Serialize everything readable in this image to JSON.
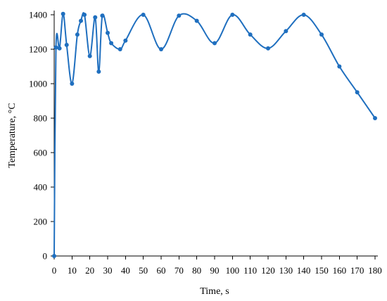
{
  "chart_data": {
    "type": "line",
    "xlabel": "Time, s",
    "ylabel": "Temperature, °C",
    "xlim": [
      0,
      180
    ],
    "ylim": [
      0,
      1400
    ],
    "xticks": [
      0,
      10,
      20,
      30,
      40,
      50,
      60,
      70,
      80,
      90,
      100,
      110,
      120,
      130,
      140,
      150,
      160,
      170,
      180
    ],
    "yticks": [
      0,
      200,
      400,
      600,
      800,
      1000,
      1200,
      1400
    ],
    "grid": false,
    "legend": "none",
    "colors": {
      "series": "#1f6fbf",
      "axis": "#000000"
    },
    "series": [
      {
        "x": [
          0,
          1,
          3,
          5,
          7,
          10,
          13,
          15,
          17,
          20,
          23,
          25,
          27,
          30,
          32,
          37,
          40,
          50,
          60,
          70,
          80,
          90,
          100,
          110,
          120,
          130,
          140,
          150,
          160,
          170,
          180
        ],
        "values": [
          0,
          1210,
          1205,
          1405,
          1225,
          1000,
          1285,
          1365,
          1400,
          1160,
          1385,
          1070,
          1395,
          1295,
          1235,
          1200,
          1250,
          1400,
          1200,
          1395,
          1365,
          1235,
          1400,
          1285,
          1205,
          1305,
          1400,
          1285,
          1100,
          950,
          800
        ]
      }
    ]
  }
}
